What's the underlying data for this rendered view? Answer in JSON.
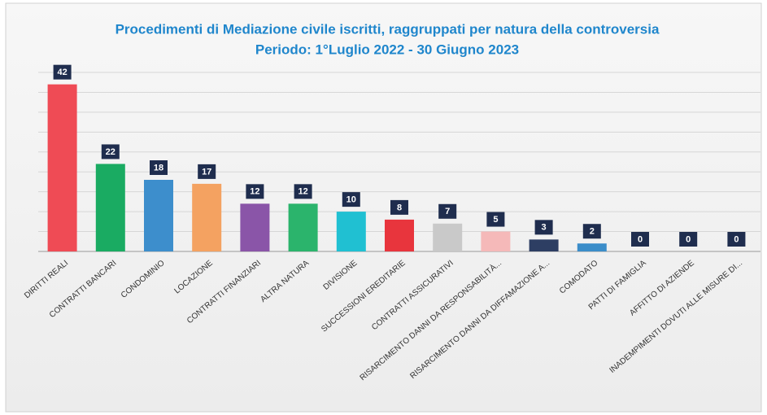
{
  "chart_data": {
    "type": "bar",
    "title": "Procedimenti di Mediazione civile iscritti, raggruppati per natura della controversia",
    "subtitle": "Periodo: 1°Luglio 2022 - 30 Giugno 2023",
    "categories": [
      "DIRITTI REALI",
      "CONTRATTI BANCARI",
      "CONDOMINIO",
      "LOCAZIONE",
      "CONTRATTI FINANZIARI",
      "ALTRA NATURA",
      "DIVISIONE",
      "SUCCESSIONI EREDITARIE",
      "CONTRATTI ASSICURATIVI",
      "RISARCIMENTO DANNI DA RESPONSABILITÀ...",
      "RISARCIMENTO DANNI DA DIFFAMAZIONE A...",
      "COMODATO",
      "PATTI DI FAMIGLIA",
      "AFFITTO DI AZIENDE",
      "INADEMPIMENTI DOVUTI ALLE MISURE DI..."
    ],
    "values": [
      42,
      22,
      18,
      17,
      12,
      12,
      10,
      8,
      7,
      5,
      3,
      2,
      0,
      0,
      0
    ],
    "colors": [
      "#ef4b55",
      "#1aab62",
      "#3d8ecc",
      "#f4a261",
      "#8a55a8",
      "#2bb46c",
      "#20c0d2",
      "#e8353d",
      "#c9c9c9",
      "#f5b9b9",
      "#2d3e63",
      "#3b8dc9",
      "#999999",
      "#999999",
      "#999999"
    ],
    "ylim": [
      0,
      45
    ],
    "yticks": [
      0,
      5,
      10,
      15,
      20,
      25,
      30,
      35,
      40,
      45
    ],
    "grid": true
  }
}
